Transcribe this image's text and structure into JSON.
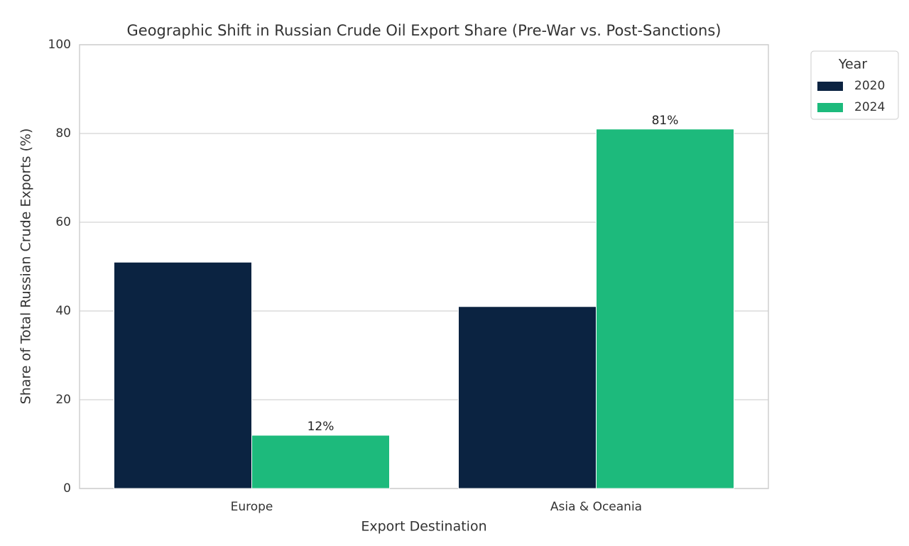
{
  "chart_data": {
    "type": "bar",
    "title": "Geographic Shift in Russian Crude Oil Export Share (Pre-War vs. Post-Sanctions)",
    "x_label": "Export Destination",
    "y_label": "Share of Total Russian Crude Exports (%)",
    "categories": [
      "Europe",
      "Asia & Oceania"
    ],
    "series": [
      {
        "name": "2020",
        "color": "#0b2341",
        "values": [
          51,
          41
        ]
      },
      {
        "name": "2024",
        "color": "#1dba7c",
        "values": [
          12,
          81
        ],
        "value_labels": [
          "12%",
          "81%"
        ]
      }
    ],
    "ylim": [
      0,
      100
    ],
    "yticks": [
      0,
      20,
      40,
      60,
      80,
      100
    ],
    "grid": true,
    "legend_title": "Year",
    "legend_position": "outside-right"
  }
}
